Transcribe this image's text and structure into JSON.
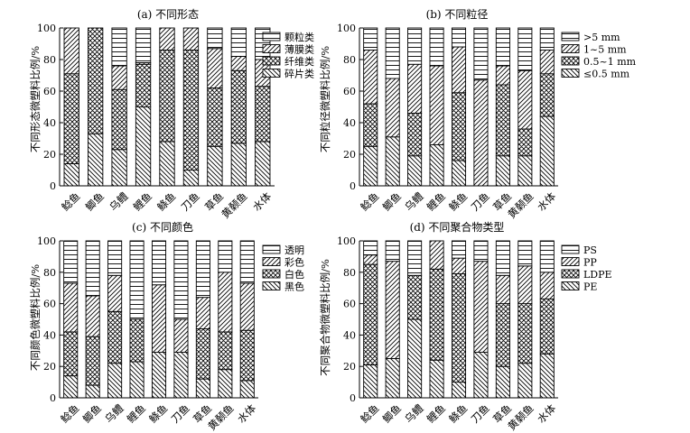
{
  "chart_data": [
    {
      "type": "bar",
      "stacked": true,
      "title": "(a) 不同形态",
      "ylabel": "不同形态微塑料比例/%",
      "ylim": [
        0,
        100
      ],
      "yticks": [
        "0",
        "20",
        "40",
        "60",
        "80",
        "100"
      ],
      "categories": [
        "鲶鱼",
        "鲫鱼",
        "乌鳢",
        "鲤鱼",
        "鲦鱼",
        "刀鱼",
        "草鱼",
        "黄颡鱼",
        "水体"
      ],
      "legend": [
        "颗粒类",
        "薄膜类",
        "纤维类",
        "碎片类"
      ],
      "legend_position": "top-right",
      "series": [
        {
          "name": "碎片类",
          "pattern": "back",
          "values": [
            14,
            33,
            23,
            50,
            28,
            10,
            25,
            27,
            28
          ]
        },
        {
          "name": "纤维类",
          "pattern": "cross",
          "values": [
            57,
            67,
            38,
            27,
            58,
            76,
            37,
            46,
            35
          ]
        },
        {
          "name": "薄膜类",
          "pattern": "fwd",
          "values": [
            29,
            0,
            15,
            1,
            14,
            14,
            25,
            9,
            17
          ]
        },
        {
          "name": "颗粒类",
          "pattern": "horiz",
          "values": [
            0,
            0,
            24,
            22,
            0,
            0,
            13,
            18,
            20
          ]
        }
      ]
    },
    {
      "type": "bar",
      "stacked": true,
      "title": "(b) 不同粒径",
      "ylabel": "不同粒径微塑料比例/%",
      "ylim": [
        0,
        100
      ],
      "yticks": [
        "0",
        "20",
        "40",
        "60",
        "80",
        "100"
      ],
      "categories": [
        "鲶鱼",
        "鲫鱼",
        "乌鳢",
        "鲤鱼",
        "鲦鱼",
        "刀鱼",
        "草鱼",
        "黄颡鱼",
        "水体"
      ],
      "legend": [
        ">5 mm",
        "1~5 mm",
        "0.5~1 mm",
        "≤0.5 mm"
      ],
      "legend_position": "top-right",
      "series": [
        {
          "name": "≤0.5 mm",
          "pattern": "back",
          "values": [
            25,
            31,
            19,
            26,
            16,
            0,
            19,
            19,
            44
          ]
        },
        {
          "name": "0.5~1 mm",
          "pattern": "cross",
          "values": [
            27,
            0,
            27,
            0,
            43,
            0,
            45,
            17,
            27
          ]
        },
        {
          "name": "1~5 mm",
          "pattern": "fwd",
          "values": [
            34,
            37,
            31,
            50,
            29,
            67,
            12,
            37,
            15
          ]
        },
        {
          "name": ">5 mm",
          "pattern": "horiz",
          "values": [
            14,
            32,
            23,
            24,
            12,
            33,
            24,
            27,
            14
          ]
        }
      ]
    },
    {
      "type": "bar",
      "stacked": true,
      "title": "(c) 不同颜色",
      "ylabel": "不同颜色微塑料比例/%",
      "ylim": [
        0,
        100
      ],
      "yticks": [
        "0",
        "20",
        "40",
        "60",
        "80",
        "100"
      ],
      "categories": [
        "鲶鱼",
        "鲫鱼",
        "乌鳢",
        "鲤鱼",
        "鲦鱼",
        "刀鱼",
        "草鱼",
        "黄颡鱼",
        "水体"
      ],
      "legend": [
        "透明",
        "彩色",
        "白色",
        "黑色"
      ],
      "legend_position": "top-right",
      "series": [
        {
          "name": "黑色",
          "pattern": "back",
          "values": [
            14,
            8,
            22,
            23,
            29,
            29,
            12,
            18,
            11
          ]
        },
        {
          "name": "白色",
          "pattern": "cross",
          "values": [
            28,
            31,
            33,
            27,
            0,
            0,
            32,
            24,
            32
          ]
        },
        {
          "name": "彩色",
          "pattern": "fwd",
          "values": [
            31,
            26,
            23,
            0,
            43,
            21,
            20,
            38,
            30
          ]
        },
        {
          "name": "透明",
          "pattern": "horiz",
          "values": [
            27,
            35,
            22,
            50,
            28,
            50,
            36,
            20,
            27
          ]
        }
      ]
    },
    {
      "type": "bar",
      "stacked": true,
      "title": "(d) 不同聚合物类型",
      "ylabel": "不同聚合物微塑料比例/%",
      "ylim": [
        0,
        100
      ],
      "yticks": [
        "0",
        "20",
        "40",
        "60",
        "80",
        "100"
      ],
      "categories": [
        "鲶鱼",
        "鲫鱼",
        "乌鳢",
        "鲤鱼",
        "鲦鱼",
        "刀鱼",
        "草鱼",
        "黄颡鱼",
        "水体"
      ],
      "legend": [
        "PS",
        "PP",
        "LDPE",
        "PE"
      ],
      "legend_position": "top-right",
      "series": [
        {
          "name": "PE",
          "pattern": "back",
          "values": [
            21,
            25,
            50,
            24,
            10,
            29,
            20,
            22,
            28
          ]
        },
        {
          "name": "LDPE",
          "pattern": "cross",
          "values": [
            64,
            0,
            28,
            58,
            69,
            0,
            40,
            38,
            35
          ]
        },
        {
          "name": "PP",
          "pattern": "fwd",
          "values": [
            6,
            62,
            0,
            18,
            10,
            58,
            18,
            24,
            17
          ]
        },
        {
          "name": "PS",
          "pattern": "horiz",
          "values": [
            9,
            13,
            22,
            0,
            11,
            13,
            22,
            16,
            20
          ]
        }
      ]
    }
  ]
}
